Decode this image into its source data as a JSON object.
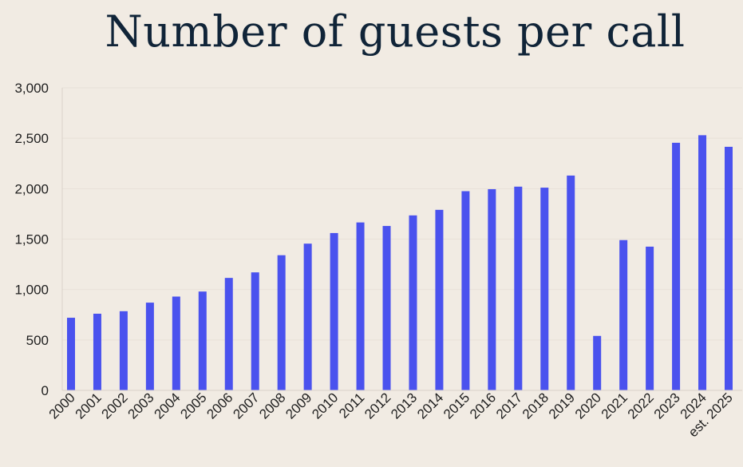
{
  "chart_data": {
    "type": "bar",
    "title": "Number of guests per call",
    "xlabel": "",
    "ylabel": "",
    "categories": [
      "2000",
      "2001",
      "2002",
      "2003",
      "2004",
      "2005",
      "2006",
      "2007",
      "2008",
      "2009",
      "2010",
      "2011",
      "2012",
      "2013",
      "2014",
      "2015",
      "2016",
      "2017",
      "2018",
      "2019",
      "2020",
      "2021",
      "2022",
      "2023",
      "2024",
      "est. 2025"
    ],
    "series": [
      {
        "values": [
          720,
          760,
          785,
          870,
          930,
          980,
          1115,
          1170,
          1340,
          1455,
          1560,
          1665,
          1630,
          1735,
          1790,
          1975,
          1995,
          2020,
          2010,
          2130,
          540,
          1490,
          1425,
          2455,
          2530,
          2415
        ]
      }
    ],
    "ylim": [
      0,
      3000
    ],
    "yticks": [
      0,
      500,
      1000,
      1500,
      2000,
      2500,
      3000
    ],
    "ytick_labels": [
      "0",
      "500",
      "1,000",
      "1,500",
      "2,000",
      "2,500",
      "3,000"
    ],
    "grid": true,
    "legend": "none",
    "colors": {
      "bar": "#4a52ee",
      "background": "#f1ebe3",
      "title": "#102438",
      "gridline": "#e8e1d8",
      "axis": "#d9d2c8"
    }
  }
}
